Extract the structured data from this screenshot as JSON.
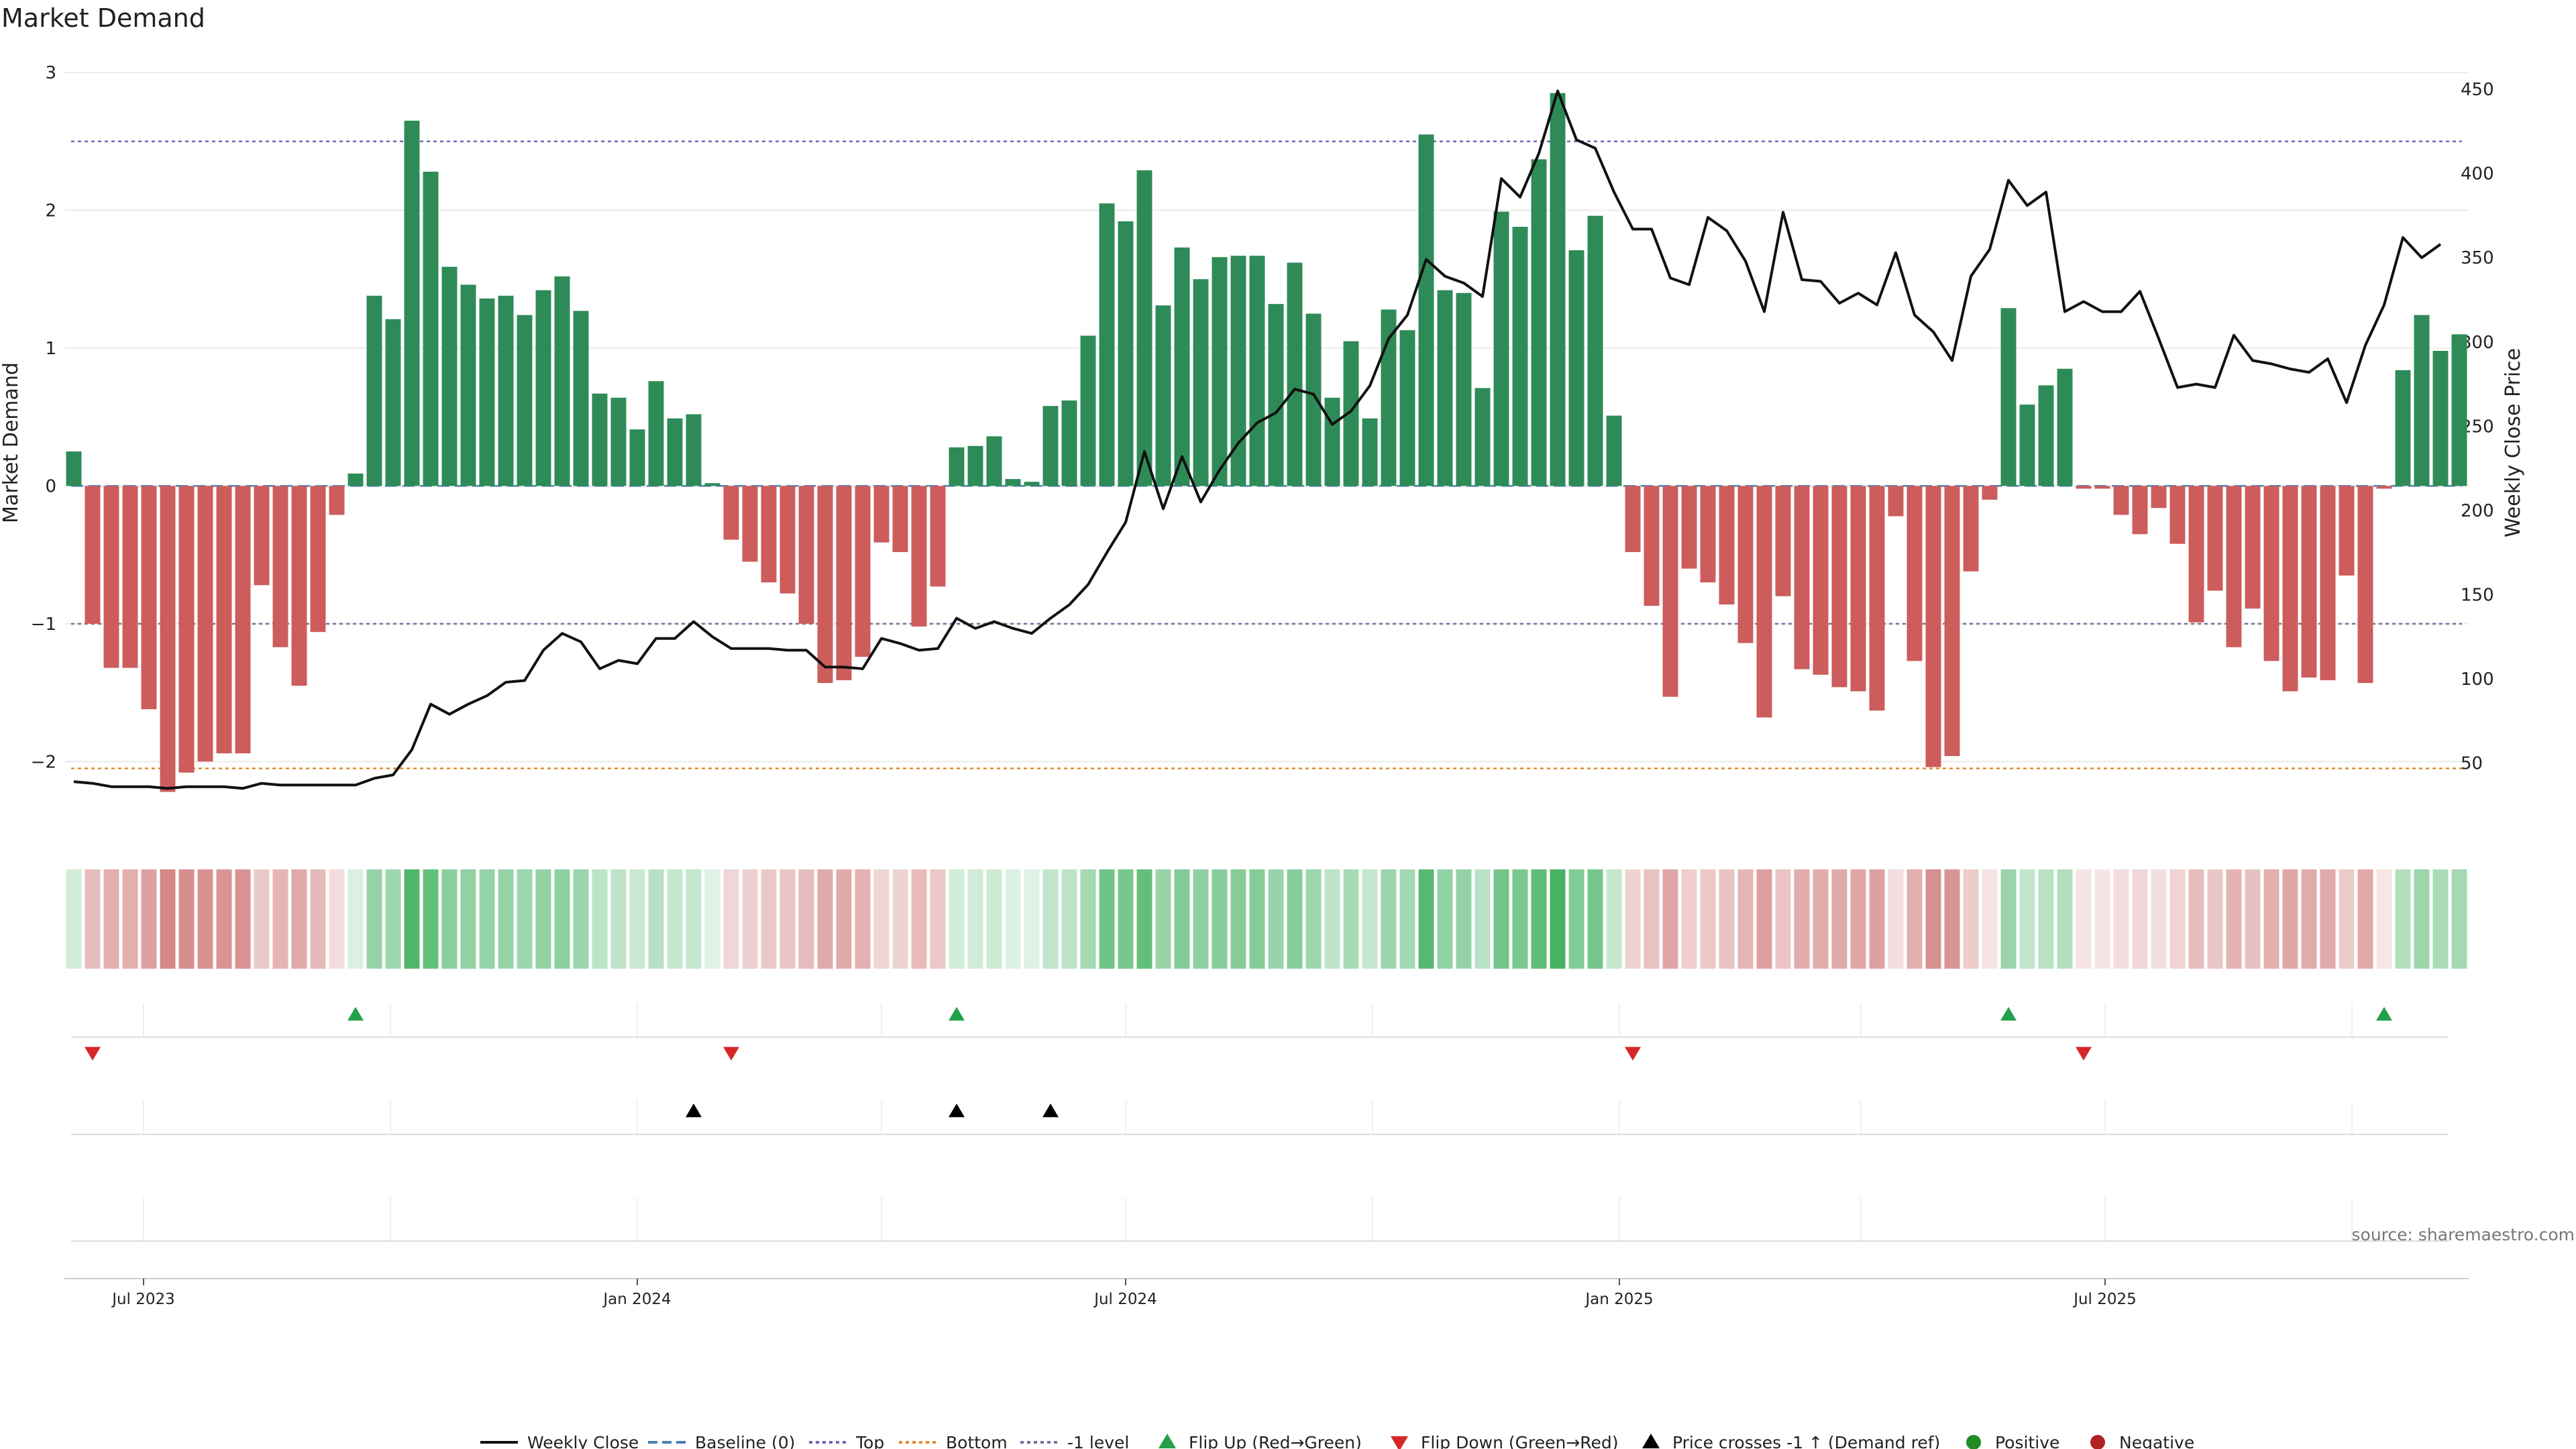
{
  "chart_data": {
    "type": "bar",
    "title": "Market Demand",
    "ylabel_left": "Market Demand",
    "ylabel_right": "Weekly Close Price",
    "source": "source: sharemaestro.com",
    "ylim_left": [
      -2.5,
      3.0
    ],
    "ylim_right": [
      10,
      460
    ],
    "yticks_left": [
      {
        "value": 3,
        "label": "3"
      },
      {
        "value": 2,
        "label": "2"
      },
      {
        "value": 1,
        "label": "1"
      },
      {
        "value": 0,
        "label": "0"
      },
      {
        "value": -1,
        "label": "−1"
      },
      {
        "value": -2,
        "label": "−2"
      }
    ],
    "yticks_right": [
      {
        "value": 450,
        "label": "450"
      },
      {
        "value": 400,
        "label": "400"
      },
      {
        "value": 350,
        "label": "350"
      },
      {
        "value": 300,
        "label": "300"
      },
      {
        "value": 250,
        "label": "250"
      },
      {
        "value": 200,
        "label": "200"
      },
      {
        "value": 150,
        "label": "150"
      },
      {
        "value": 100,
        "label": "100"
      },
      {
        "value": 50,
        "label": "50"
      }
    ],
    "x_start": "2023-06-05",
    "bar_interval_days": 7,
    "xticks": [
      {
        "date": "2023-07-01",
        "label": "Jul 2023"
      },
      {
        "date": "2024-01-01",
        "label": "Jan 2024"
      },
      {
        "date": "2024-07-01",
        "label": "Jul 2024"
      },
      {
        "date": "2025-01-01",
        "label": "Jan 2025"
      },
      {
        "date": "2025-07-01",
        "label": "Jul 2025"
      }
    ],
    "reference_lines": [
      {
        "name": "Top",
        "value": 2.5,
        "color": "#6b6bb3",
        "style": "dotted"
      },
      {
        "name": "Bottom",
        "value": -2.05,
        "color": "#e08a2c",
        "style": "dotted"
      },
      {
        "name": "-1 level",
        "value": -1.0,
        "color": "#7a6b9a",
        "style": "dotted"
      },
      {
        "name": "Baseline (0)",
        "value": 0.0,
        "color": "#4a7fb5",
        "style": "dashed"
      }
    ],
    "colors": {
      "positive": "#2e8b57",
      "negative": "#cd5c5c",
      "price_line": "#111111",
      "flip_up": "#22a04b",
      "flip_down": "#d62728",
      "cross": "#000000",
      "grid": "#ebebeb"
    },
    "series": [
      {
        "name": "Market Demand",
        "values": [
          0.25,
          -1.0,
          -1.32,
          -1.32,
          -1.62,
          -2.22,
          -2.08,
          -2.0,
          -1.94,
          -1.94,
          -0.72,
          -1.17,
          -1.45,
          -1.06,
          -0.21,
          0.09,
          1.38,
          1.21,
          2.65,
          2.28,
          1.59,
          1.46,
          1.36,
          1.38,
          1.24,
          1.42,
          1.52,
          1.27,
          0.67,
          0.64,
          0.41,
          0.76,
          0.49,
          0.52,
          0.02,
          -0.39,
          -0.55,
          -0.7,
          -0.78,
          -1.0,
          -1.43,
          -1.41,
          -1.24,
          -0.41,
          -0.48,
          -1.02,
          -0.73,
          0.28,
          0.29,
          0.36,
          0.05,
          0.03,
          0.58,
          0.62,
          1.09,
          2.05,
          1.92,
          2.29,
          1.31,
          1.73,
          1.5,
          1.66,
          1.67,
          1.67,
          1.32,
          1.62,
          1.25,
          0.64,
          1.05,
          0.49,
          1.28,
          1.13,
          2.55,
          1.42,
          1.4,
          0.71,
          1.99,
          1.88,
          2.37,
          2.85,
          1.71,
          1.96,
          0.51,
          -0.48,
          -0.87,
          -1.53,
          -0.6,
          -0.7,
          -0.86,
          -1.14,
          -1.68,
          -0.8,
          -1.33,
          -1.37,
          -1.46,
          -1.49,
          -1.63,
          -0.22,
          -1.27,
          -2.04,
          -1.96,
          -0.62,
          -0.1,
          1.29,
          0.59,
          0.73,
          0.85,
          -0.02,
          -0.02,
          -0.21,
          -0.35,
          -0.16,
          -0.42,
          -0.99,
          -0.76,
          -1.17,
          -0.89,
          -1.27,
          -1.49,
          -1.39,
          -1.41,
          -0.65,
          -1.43,
          -0.02,
          0.84,
          1.24,
          0.98,
          1.1
        ]
      },
      {
        "name": "Weekly Close",
        "values": [
          39,
          38,
          36,
          36,
          36,
          35,
          36,
          36,
          36,
          35,
          38,
          37,
          37,
          37,
          37,
          37,
          41,
          43,
          58,
          85,
          79,
          85,
          90,
          98,
          99,
          117,
          127,
          122,
          106,
          111,
          109,
          124,
          124,
          134,
          125,
          118,
          118,
          118,
          117,
          117,
          107,
          107,
          106,
          124,
          121,
          117,
          118,
          136,
          130,
          134,
          130,
          127,
          136,
          144,
          156,
          175,
          193,
          235,
          201,
          232,
          205,
          224,
          240,
          252,
          258,
          272,
          269,
          251,
          259,
          274,
          302,
          316,
          349,
          339,
          335,
          327,
          397,
          386,
          412,
          449,
          420,
          415,
          389,
          367,
          367,
          338,
          334,
          374,
          366,
          348,
          318,
          377,
          337,
          336,
          323,
          329,
          322,
          353,
          316,
          306,
          289,
          339,
          355,
          396,
          381,
          389,
          318,
          324,
          318,
          318,
          330,
          302,
          273,
          275,
          273,
          304,
          289,
          287,
          284,
          282,
          290,
          264,
          298,
          322,
          362,
          350,
          358
        ]
      }
    ],
    "heat_strip": {
      "description": "Per-week demand intensity strip (green positive, red negative)"
    },
    "flip_up_weeks": [
      15,
      47,
      103,
      123
    ],
    "flip_down_weeks": [
      1,
      35,
      83,
      107
    ],
    "price_cross_weeks": [
      33,
      47,
      52
    ],
    "legend": [
      {
        "label": "Weekly Close",
        "kind": "line-solid",
        "color": "#111111"
      },
      {
        "label": "Baseline (0)",
        "kind": "line-dashed",
        "color": "#4a7fb5"
      },
      {
        "label": "Top",
        "kind": "line-dotted",
        "color": "#6b6bb3"
      },
      {
        "label": "Bottom",
        "kind": "line-dotted",
        "color": "#e08a2c"
      },
      {
        "label": "-1 level",
        "kind": "line-dotted",
        "color": "#7a6b9a"
      },
      {
        "label": "Flip Up (Red→Green)",
        "kind": "tri-up",
        "color": "#22a04b"
      },
      {
        "label": "Flip Down (Green→Red)",
        "kind": "tri-down",
        "color": "#d62728"
      },
      {
        "label": "Price crosses -1 ↑ (Demand ref)",
        "kind": "tri-up",
        "color": "#000000"
      },
      {
        "label": "Positive",
        "kind": "dot",
        "color": "#228b22"
      },
      {
        "label": "Negative",
        "kind": "dot",
        "color": "#b22222"
      }
    ]
  }
}
